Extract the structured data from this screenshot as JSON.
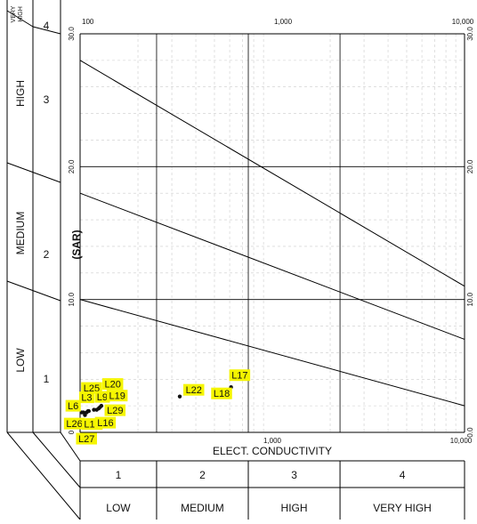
{
  "chart_data": {
    "type": "scatter",
    "title": "",
    "xlabel": "ELECT. CONDUCTIVITY",
    "ylabel": "(SAR)",
    "x_scale": "log",
    "xlim": [
      100,
      10000
    ],
    "ylim": [
      0,
      30
    ],
    "grid": true,
    "x_ticks_top": [
      "100",
      "1,000",
      "10,000"
    ],
    "x_ticks_bottom": [
      "1,000",
      "10,000"
    ],
    "y_ticks_left": [
      "30.0",
      "20.0",
      "10.0",
      "0"
    ],
    "y_ticks_right": [
      "30.0",
      "20.0",
      "10.0",
      "0.0"
    ],
    "hazard_lines": [
      {
        "from": [
          100,
          28.0
        ],
        "to": [
          10000,
          11.0
        ]
      },
      {
        "from": [
          100,
          18.0
        ],
        "to": [
          10000,
          7.0
        ]
      },
      {
        "from": [
          100,
          10.0
        ],
        "to": [
          10000,
          2.0
        ]
      }
    ],
    "points": [
      {
        "label": "L25",
        "x": 108,
        "y": 1.5
      },
      {
        "label": "L20",
        "x": 125,
        "y": 1.8
      },
      {
        "label": "L3",
        "x": 110,
        "y": 1.6
      },
      {
        "label": "L6",
        "x": 104,
        "y": 1.5
      },
      {
        "label": "L9",
        "x": 127,
        "y": 1.9
      },
      {
        "label": "L19",
        "x": 129,
        "y": 2.0
      },
      {
        "label": "L29",
        "x": 118,
        "y": 1.7
      },
      {
        "label": "L26",
        "x": 102,
        "y": 1.5
      },
      {
        "label": "L15",
        "x": 111,
        "y": 1.6
      },
      {
        "label": "L16",
        "x": 122,
        "y": 1.7
      },
      {
        "label": "L27",
        "x": 106,
        "y": 1.3
      },
      {
        "label": "L22",
        "x": 330,
        "y": 2.7
      },
      {
        "label": "L18",
        "x": 570,
        "y": 3.1
      },
      {
        "label": "L17",
        "x": 610,
        "y": 3.4
      }
    ],
    "salinity_classes": [
      {
        "num": "1",
        "label": "LOW"
      },
      {
        "num": "2",
        "label": "MEDIUM"
      },
      {
        "num": "3",
        "label": "HIGH"
      },
      {
        "num": "4",
        "label": "VERY HIGH"
      }
    ],
    "sodium_classes": [
      {
        "num": "1",
        "label": "LOW"
      },
      {
        "num": "2",
        "label": "MEDIUM"
      },
      {
        "num": "3",
        "label": "HIGH"
      },
      {
        "num": "4",
        "label": "VERY HIGH"
      }
    ]
  },
  "colors": {
    "label_bg": "#f5f500",
    "line": "#000000",
    "grid": "#cccccc"
  }
}
